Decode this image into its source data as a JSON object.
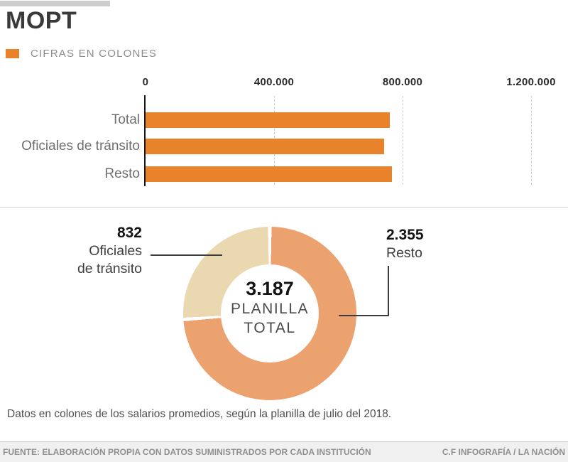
{
  "header": {
    "title": "MOPT",
    "legend": {
      "label": "CIFRAS EN COLONES",
      "swatch_color": "#e8822b"
    }
  },
  "colors": {
    "bar_orange": "#e8822b",
    "donut_orange": "#eba26f",
    "donut_beige": "#ead8b0",
    "accent_bar_gray": "#cdcdcd",
    "grid_gray": "#c9c9c9",
    "connector_dark": "#3c3c3c"
  },
  "chart_data": [
    {
      "type": "bar",
      "orientation": "horizontal",
      "unit": "colones",
      "categories": [
        "Total",
        "Oficiales de tránsito",
        "Resto"
      ],
      "values": [
        760000,
        742000,
        766000
      ],
      "values_estimated_from_pixels": true,
      "xlim": [
        0,
        1300000
      ],
      "x_ticks": [
        {
          "value": 0,
          "label": "0"
        },
        {
          "value": 400000,
          "label": "400.000"
        },
        {
          "value": 800000,
          "label": "800.000"
        },
        {
          "value": 1200000,
          "label": "1.200.000"
        }
      ],
      "grid": "dashed-vertical",
      "bar_color": "#e8822b"
    },
    {
      "type": "pie",
      "subtype": "donut",
      "direction": "clockwise",
      "start_angle_deg": 0,
      "slices": [
        {
          "label": "Resto",
          "value": 2355,
          "display": "2.355",
          "color": "#eba26f"
        },
        {
          "label": "Oficiales de tránsito",
          "value": 832,
          "display": "832",
          "color": "#ead8b0"
        }
      ],
      "center": {
        "value": 3187,
        "display": "3.187",
        "label_line1": "PLANILLA",
        "label_line2": "TOTAL"
      }
    }
  ],
  "callouts": {
    "left": {
      "value": "832",
      "line1": "Oficiales",
      "line2": "de tránsito"
    },
    "right": {
      "value": "2.355",
      "line1": "Resto"
    }
  },
  "footnote": "Datos en colones de los salarios promedios, según la planilla de julio del 2018.",
  "footer": {
    "source": "FUENTE: ELABORACIÓN PROPIA CON DATOS SUMINISTRADOS POR CADA INSTITUCIÓN",
    "credit": "C.F INFOGRAFÍA / LA NACIÓN"
  }
}
